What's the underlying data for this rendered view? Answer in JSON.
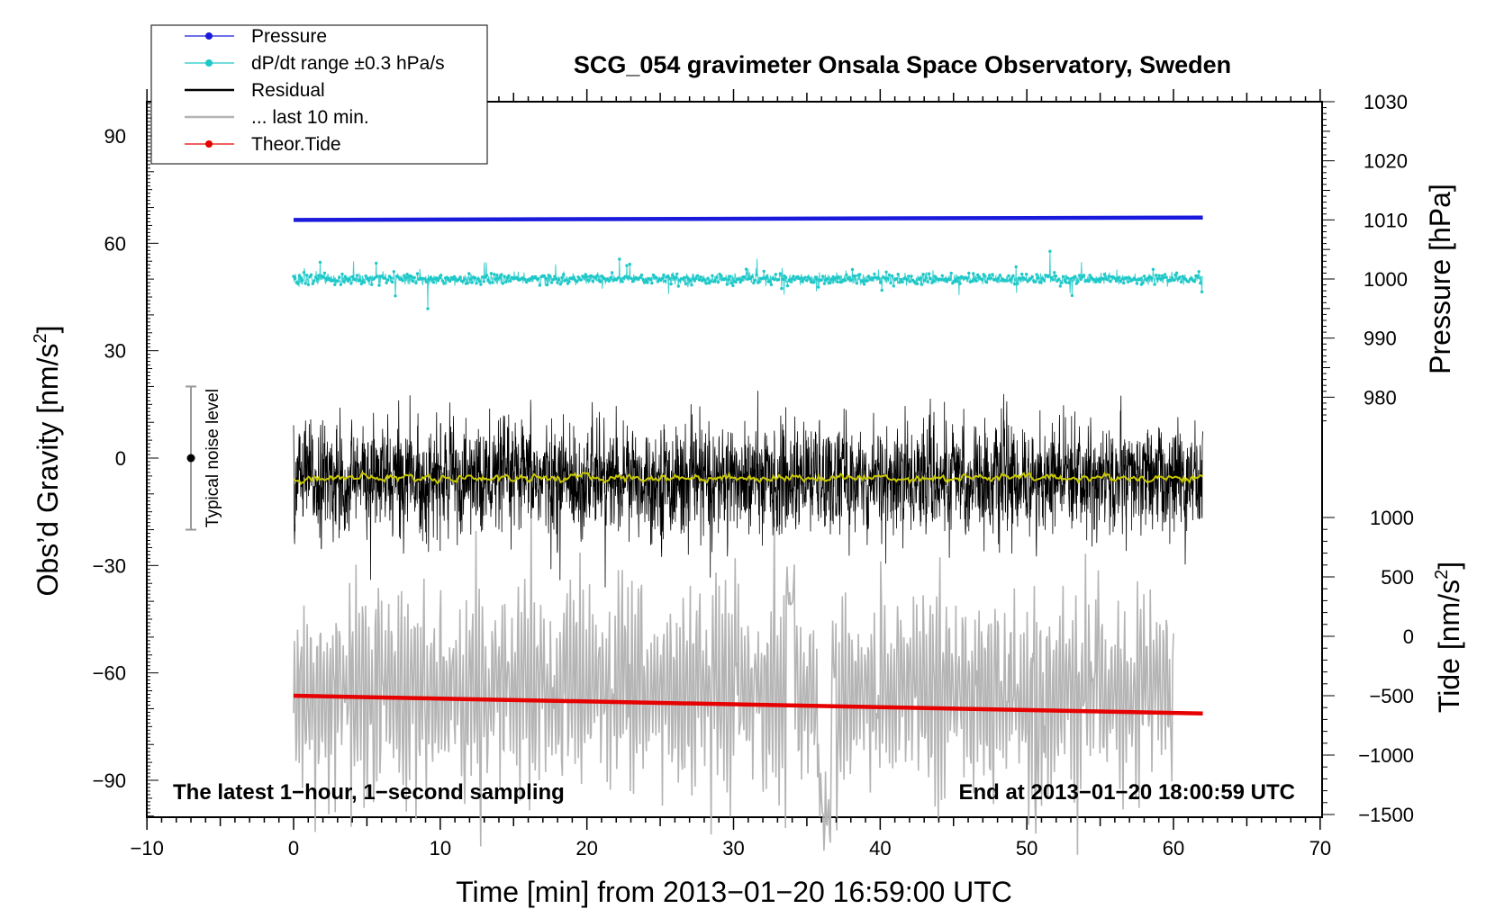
{
  "chart_data": {
    "type": "line",
    "title": "SCG_054 gravimeter Onsala Space Observatory, Sweden",
    "xlabel": "Time [min] from 2013−01−20 16:59:00 UTC",
    "ylabel_left": "Obs’d Gravity [nm/s²]",
    "ylabel_right_top": "Pressure [hPa]",
    "ylabel_right_bottom": "Tide [nm/s²]",
    "xlim": [
      -10,
      70
    ],
    "ylim_left": [
      -100,
      100
    ],
    "ylim_pressure": [
      970,
      1030
    ],
    "ylim_tide": [
      -1500,
      1000
    ],
    "x_ticks": [
      "−10",
      "0",
      "10",
      "20",
      "30",
      "40",
      "50",
      "60",
      "70"
    ],
    "x_tick_values": [
      -10,
      0,
      10,
      20,
      30,
      40,
      50,
      60,
      70
    ],
    "y_left_ticks": [
      "90",
      "60",
      "30",
      "0",
      "−30",
      "−60",
      "−90"
    ],
    "y_left_tick_values": [
      90,
      60,
      30,
      0,
      -30,
      -60,
      -90
    ],
    "y_pressure_ticks": [
      "1030",
      "1020",
      "1010",
      "1000",
      "990",
      "980"
    ],
    "y_pressure_tick_values": [
      1030,
      1020,
      1010,
      1000,
      990,
      980
    ],
    "y_tide_ticks": [
      "1000",
      "500",
      "0",
      "−500",
      "−1000",
      "−1500"
    ],
    "y_tide_tick_values": [
      1000,
      500,
      0,
      -500,
      -1000,
      -1500
    ],
    "legend": [
      {
        "label": "Pressure",
        "color": "#1a1adc",
        "marker": true
      },
      {
        "label": "dP/dt range ±0.3 hPa/s",
        "color": "#1ec8c8",
        "marker": true
      },
      {
        "label": "Residual",
        "color": "#000000",
        "marker": false
      },
      {
        "label": "... last 10 min.",
        "color": "#b4b4b4",
        "marker": false
      },
      {
        "label": "Theor.Tide",
        "color": "#e60000",
        "marker": true
      }
    ],
    "noise_label": "Typical noise level",
    "noise_range": [
      -20,
      20
    ],
    "noise_x": -7,
    "annotation_left": "The latest 1−hour, 1−second sampling",
    "annotation_right": "End at 2013−01−20 18:00:59 UTC",
    "series": [
      {
        "name": "Pressure",
        "color": "#1a1adc",
        "x_range": [
          0,
          62
        ],
        "start_hpa": 1010,
        "end_hpa": 1010.2,
        "axis": "pressure"
      },
      {
        "name": "dP/dt range ±0.3 hPa/s",
        "color": "#1ec8c8",
        "x_range": [
          0,
          62
        ],
        "center": 50,
        "spread": 3,
        "axis": "left"
      },
      {
        "name": "Residual",
        "color": "#000000",
        "x_range": [
          0,
          62
        ],
        "center": -6,
        "amplitude": 25,
        "axis": "left"
      },
      {
        "name": "Residual smoothed",
        "color": "#c8c800",
        "x_range": [
          0,
          62
        ],
        "center": -6,
        "axis": "left"
      },
      {
        "name": "... last 10 min.",
        "color": "#b4b4b4",
        "x_range": [
          0,
          60
        ],
        "center": -65,
        "amplitude": 24,
        "axis": "left"
      },
      {
        "name": "Theor.Tide",
        "color": "#e60000",
        "x_range": [
          0,
          62
        ],
        "start_nms2": -500,
        "end_nms2": -650,
        "axis": "tide"
      }
    ]
  }
}
